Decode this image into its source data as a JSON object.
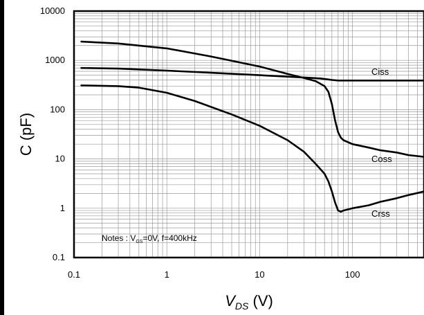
{
  "chart_data": {
    "type": "line",
    "xscale": "log",
    "yscale": "log",
    "xlim": [
      0.1,
      600
    ],
    "ylim": [
      0.1,
      10000
    ],
    "grid": true,
    "x_ticks": [
      "0.1",
      "1",
      "10",
      "100"
    ],
    "y_ticks": [
      "0.1",
      "1",
      "10",
      "100",
      "1000",
      "10000"
    ],
    "xlabel": {
      "main": "V",
      "sub": "DS",
      "unit": " (V)"
    },
    "ylabel": "C (pF)",
    "note": {
      "prefix": "Notes : V",
      "sub": "GS",
      "suffix": "=0V, f=400kHz"
    },
    "series": [
      {
        "name": "Ciss",
        "x": [
          0.12,
          0.3,
          1,
          3,
          10,
          30,
          45,
          55,
          60,
          70,
          80,
          100,
          200,
          400,
          600
        ],
        "y": [
          700,
          680,
          620,
          560,
          500,
          450,
          430,
          410,
          400,
          390,
          390,
          390,
          390,
          390,
          390
        ]
      },
      {
        "name": "Coss",
        "x": [
          0.12,
          0.3,
          1,
          3,
          10,
          20,
          30,
          40,
          50,
          55,
          60,
          65,
          70,
          75,
          80,
          100,
          150,
          200,
          300,
          400,
          600
        ],
        "y": [
          2400,
          2200,
          1750,
          1200,
          750,
          530,
          440,
          380,
          300,
          230,
          130,
          60,
          35,
          27,
          24,
          20,
          17,
          15,
          13.5,
          12,
          11
        ]
      },
      {
        "name": "Crss",
        "x": [
          0.12,
          0.3,
          0.5,
          1,
          2,
          5,
          10,
          20,
          30,
          40,
          50,
          55,
          60,
          65,
          70,
          75,
          80,
          100,
          150,
          200,
          300,
          400,
          600
        ],
        "y": [
          310,
          300,
          280,
          220,
          150,
          80,
          47,
          24,
          14,
          8,
          5,
          3.5,
          2.2,
          1.3,
          0.9,
          0.85,
          0.9,
          1.0,
          1.15,
          1.35,
          1.6,
          1.85,
          2.2
        ]
      }
    ]
  }
}
